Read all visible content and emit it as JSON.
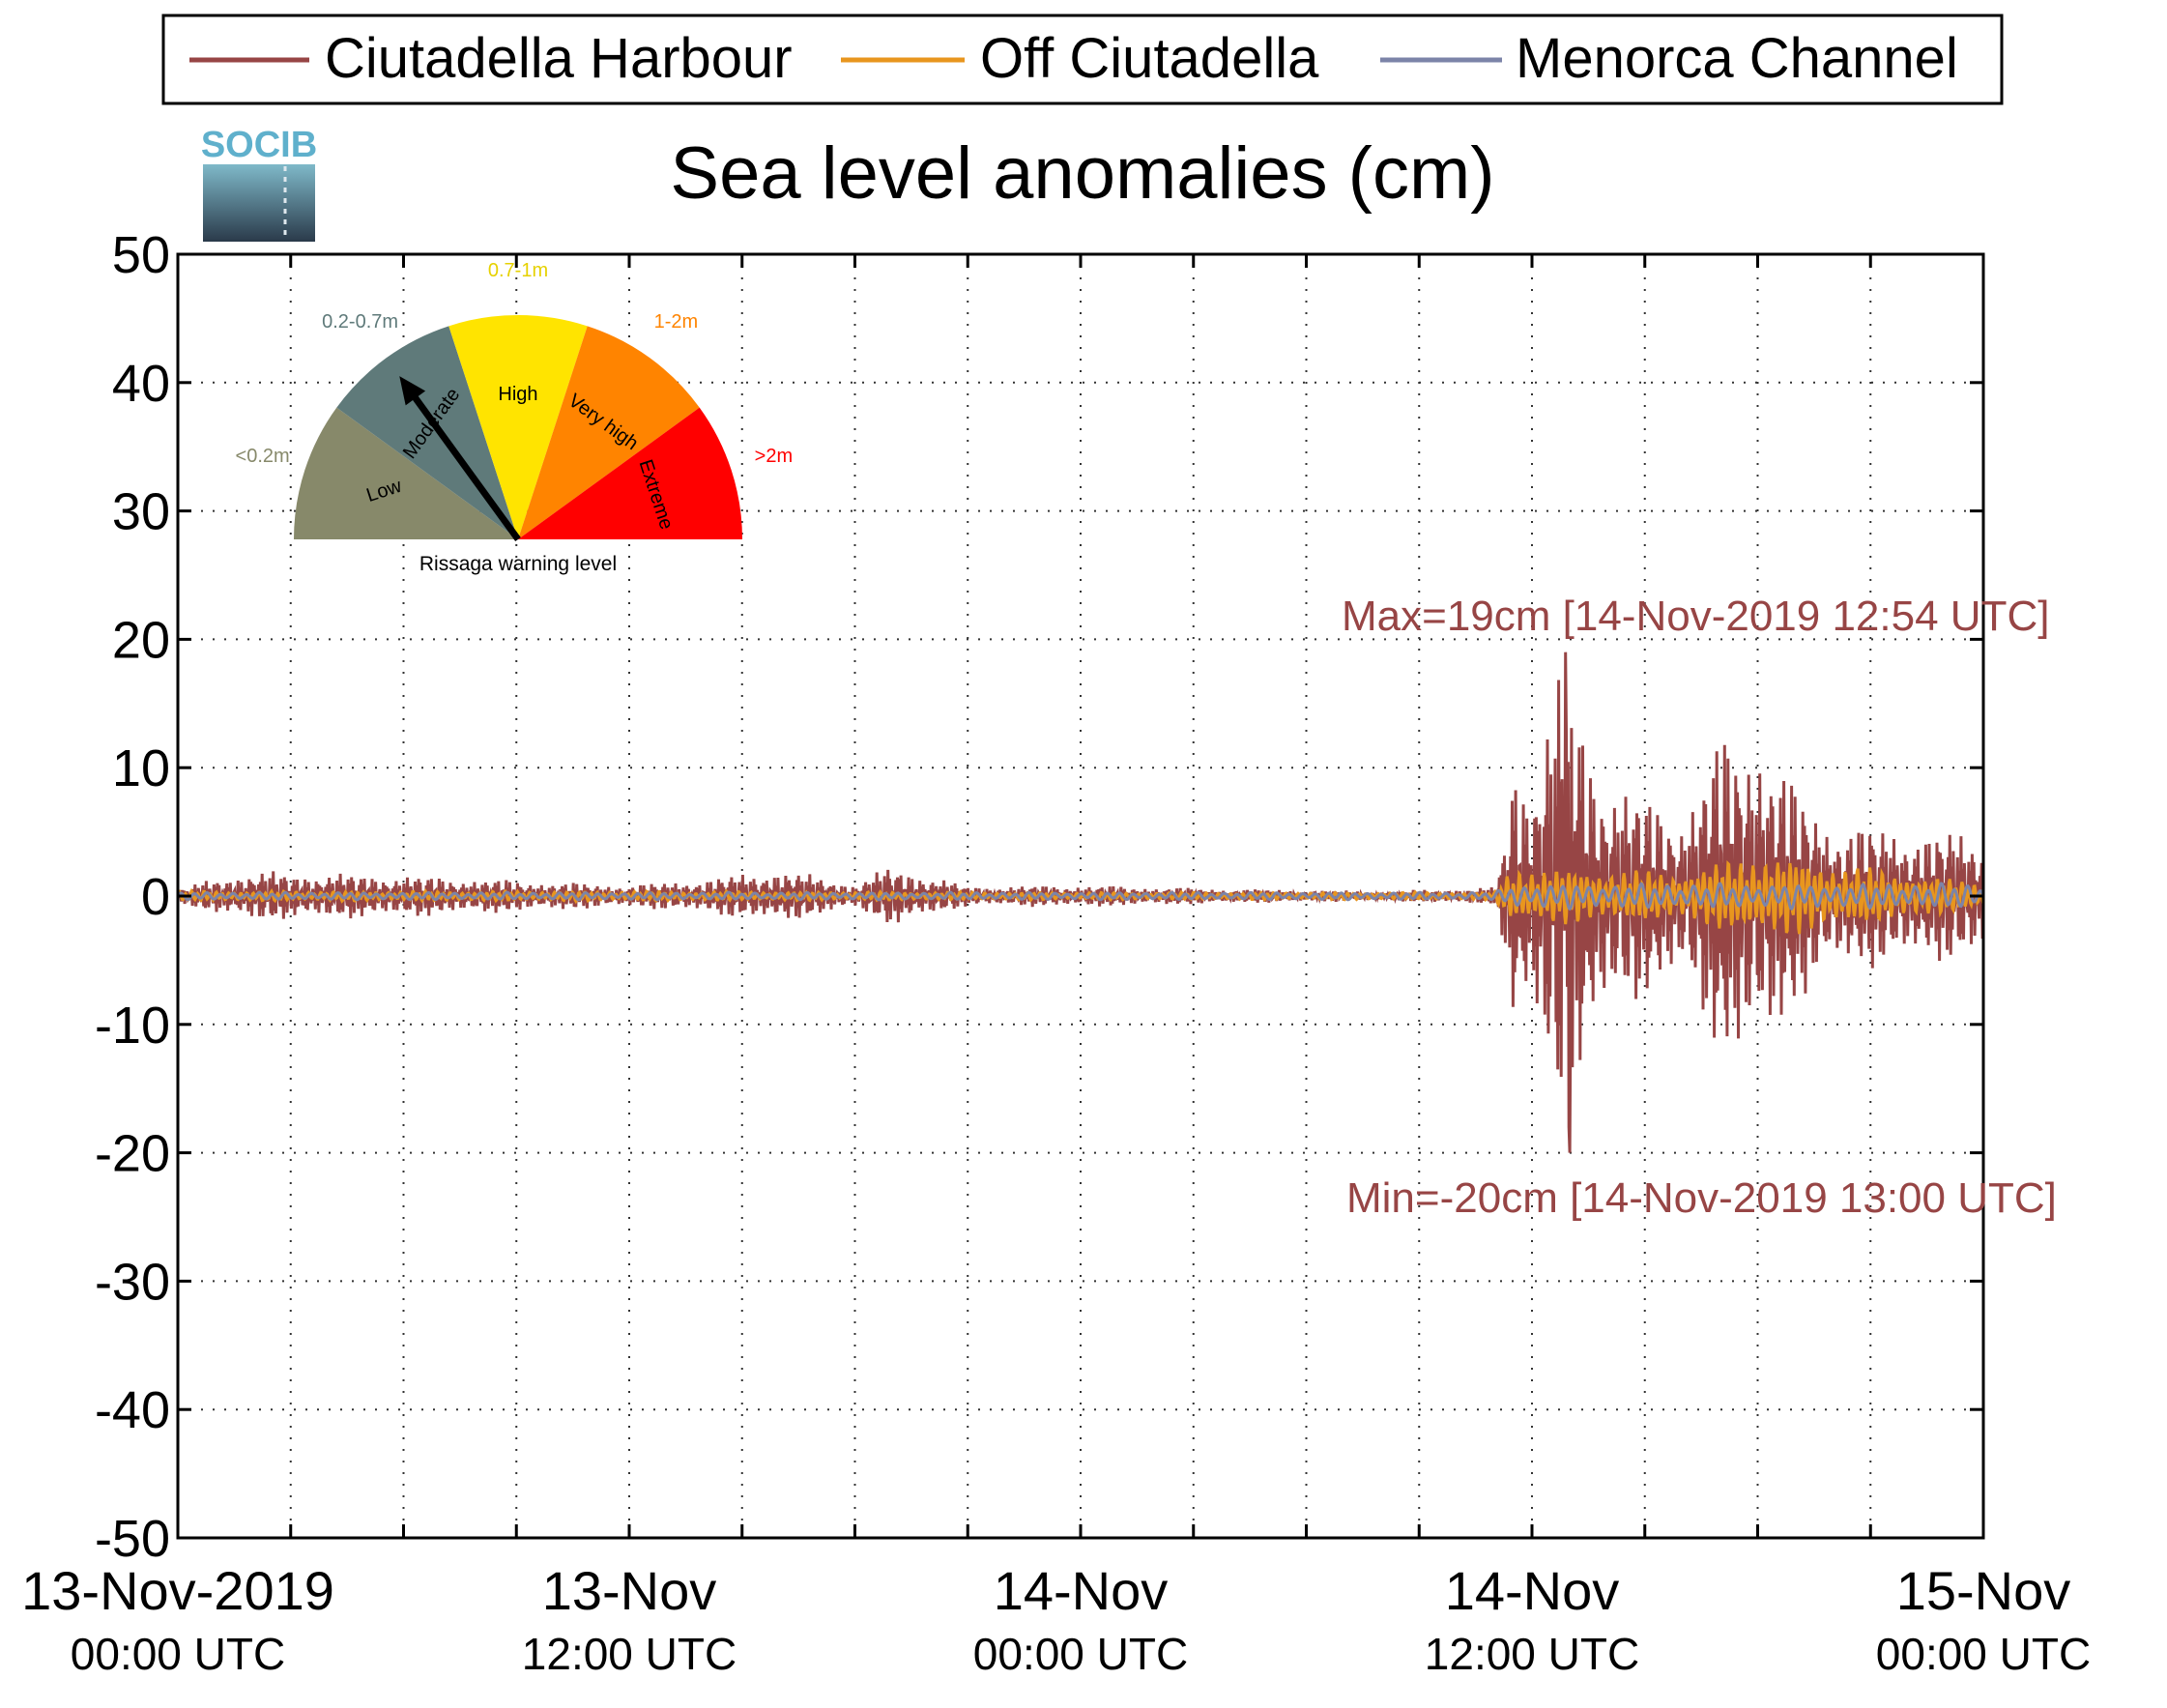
{
  "chart_data": {
    "type": "line",
    "title": "Sea level anomalies (cm)",
    "logo_text": "SOCIB",
    "ylim": [
      -50,
      50
    ],
    "yticks": [
      -50,
      -40,
      -30,
      -20,
      -10,
      0,
      10,
      20,
      30,
      40,
      50
    ],
    "xlim": [
      "2019-11-13 00:00",
      "2019-11-15 00:00"
    ],
    "xticks": [
      {
        "value": "2019-11-13 00:00",
        "line1": "13-Nov-2019",
        "line2": "00:00 UTC"
      },
      {
        "value": "2019-11-13 12:00",
        "line1": "13-Nov",
        "line2": "12:00 UTC"
      },
      {
        "value": "2019-11-14 00:00",
        "line1": "14-Nov",
        "line2": "00:00 UTC"
      },
      {
        "value": "2019-11-14 12:00",
        "line1": "14-Nov",
        "line2": "12:00 UTC"
      },
      {
        "value": "2019-11-15 00:00",
        "line1": "15-Nov",
        "line2": "00:00 UTC"
      }
    ],
    "minor_xticks_hours": 3,
    "grid": true,
    "legend_position": "top",
    "series": [
      {
        "name": "Ciutadella Harbour",
        "color": "#974545",
        "envelope": [
          {
            "t": "2019-11-13 00:00",
            "amp": 0.5
          },
          {
            "t": "2019-11-13 01:00",
            "amp": 1.5
          },
          {
            "t": "2019-11-13 02:00",
            "amp": 2.0
          },
          {
            "t": "2019-11-13 06:00",
            "amp": 1.7
          },
          {
            "t": "2019-11-13 09:00",
            "amp": 1.3
          },
          {
            "t": "2019-11-13 12:00",
            "amp": 0.9
          },
          {
            "t": "2019-11-13 14:00",
            "amp": 1.4
          },
          {
            "t": "2019-11-13 16:00",
            "amp": 2.2
          },
          {
            "t": "2019-11-13 18:00",
            "amp": 1.0
          },
          {
            "t": "2019-11-13 19:00",
            "amp": 2.5
          },
          {
            "t": "2019-11-13 21:00",
            "amp": 0.8
          },
          {
            "t": "2019-11-14 00:00",
            "amp": 0.9
          },
          {
            "t": "2019-11-14 04:00",
            "amp": 0.6
          },
          {
            "t": "2019-11-14 08:00",
            "amp": 0.4
          },
          {
            "t": "2019-11-14 11:00",
            "amp": 0.7
          },
          {
            "t": "2019-11-14 11:15",
            "amp": 4.0
          },
          {
            "t": "2019-11-14 11:30",
            "amp": 12.0
          },
          {
            "t": "2019-11-14 12:00",
            "amp": 10.0
          },
          {
            "t": "2019-11-14 12:30",
            "amp": 16.0
          },
          {
            "t": "2019-11-14 12:54",
            "amp": 19.5
          },
          {
            "t": "2019-11-14 13:30",
            "amp": 13.0
          },
          {
            "t": "2019-11-14 14:00",
            "amp": 10.0
          },
          {
            "t": "2019-11-14 15:00",
            "amp": 8.0
          },
          {
            "t": "2019-11-14 16:00",
            "amp": 7.0
          },
          {
            "t": "2019-11-14 17:00",
            "amp": 13.0
          },
          {
            "t": "2019-11-14 18:00",
            "amp": 14.0
          },
          {
            "t": "2019-11-14 19:00",
            "amp": 9.0
          },
          {
            "t": "2019-11-14 20:00",
            "amp": 6.0
          },
          {
            "t": "2019-11-15 00:00",
            "amp": 5.0
          }
        ]
      },
      {
        "name": "Off Ciutadella",
        "color": "#e8961e",
        "envelope": [
          {
            "t": "2019-11-13 00:00",
            "amp": 0.4
          },
          {
            "t": "2019-11-13 12:00",
            "amp": 0.4
          },
          {
            "t": "2019-11-14 00:00",
            "amp": 0.3
          },
          {
            "t": "2019-11-14 11:00",
            "amp": 0.3
          },
          {
            "t": "2019-11-14 11:30",
            "amp": 2.5
          },
          {
            "t": "2019-11-14 13:00",
            "amp": 2.2
          },
          {
            "t": "2019-11-14 16:00",
            "amp": 2.0
          },
          {
            "t": "2019-11-14 18:00",
            "amp": 3.5
          },
          {
            "t": "2019-11-15 00:00",
            "amp": 1.0
          }
        ]
      },
      {
        "name": "Menorca Channel",
        "color": "#7c84a8",
        "envelope": [
          {
            "t": "2019-11-13 00:00",
            "amp": 0.3
          },
          {
            "t": "2019-11-14 11:00",
            "amp": 0.3
          },
          {
            "t": "2019-11-14 11:30",
            "amp": 1.0
          },
          {
            "t": "2019-11-15 00:00",
            "amp": 1.0
          }
        ]
      }
    ],
    "annotations": {
      "max_text": "Max=19cm [14-Nov-2019 12:54 UTC]",
      "min_text": "Min=-20cm [14-Nov-2019 13:00 UTC]",
      "color": "#974545"
    },
    "max_point": {
      "t": "2019-11-14 12:54",
      "value": 19
    },
    "min_point": {
      "t": "2019-11-14 13:00",
      "value": -20
    },
    "rissaga_gauge": {
      "caption": "Rissaga warning level",
      "segments": [
        {
          "label": "Low",
          "range": "<0.2m",
          "color": "#87896a",
          "range_color": "#87896a"
        },
        {
          "label": "Moderate",
          "range": "0.2-0.7m",
          "color": "#5f7a7a",
          "range_color": "#5f7a7a"
        },
        {
          "label": "High",
          "range": "0.7-1m",
          "color": "#ffe400",
          "range_color": "#e6d100"
        },
        {
          "label": "Very high",
          "range": "1-2m",
          "color": "#ff8400",
          "range_color": "#ff8400"
        },
        {
          "label": "Extreme",
          "range": ">2m",
          "color": "#ff0000",
          "range_color": "#ff0000"
        }
      ],
      "needle_level": "Moderate"
    }
  }
}
